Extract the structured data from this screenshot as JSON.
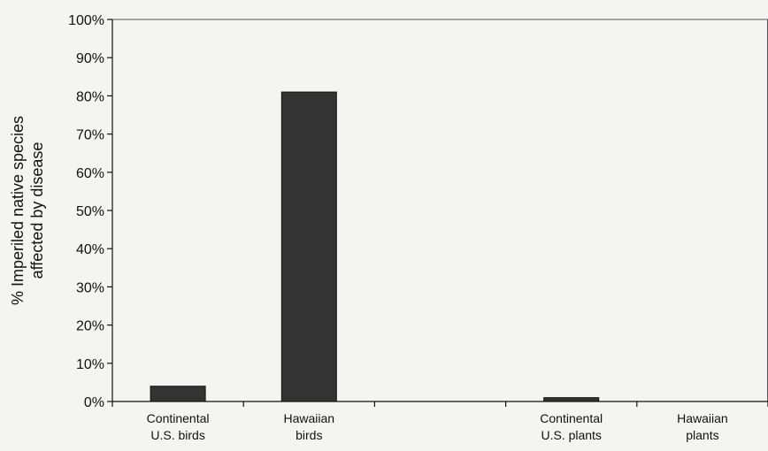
{
  "chart_data": {
    "type": "bar",
    "title": "",
    "xlabel": "",
    "ylabel": [
      "% Imperiled native species",
      "affected by disease"
    ],
    "ylim": [
      0,
      100
    ],
    "y_ticks": [
      "0%",
      "10%",
      "20%",
      "30%",
      "40%",
      "50%",
      "60%",
      "70%",
      "80%",
      "90%",
      "100%"
    ],
    "categories": [
      [
        "Continental",
        "U.S. birds"
      ],
      [
        "Hawaiian",
        "birds"
      ],
      [
        "",
        ""
      ],
      [
        "Continental",
        "U.S. plants"
      ],
      [
        "Hawaiian",
        "plants"
      ]
    ],
    "values": [
      4,
      81,
      null,
      1,
      0
    ],
    "grid": false,
    "legend": "none",
    "bar_color": "#333333"
  }
}
